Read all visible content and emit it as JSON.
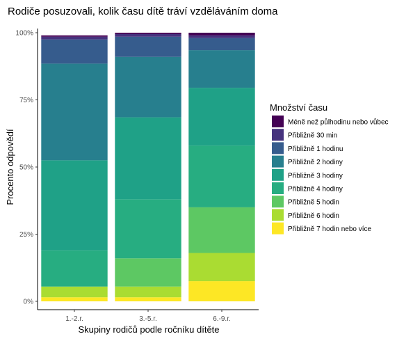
{
  "chart_data": {
    "type": "bar",
    "stacked": "percent",
    "title": "Rodiče posuzovali, kolik času dítě tráví vzděláváním doma",
    "xlabel": "Skupiny rodičů podle ročníku dítěte",
    "ylabel": "Procento odpovědí",
    "ylim": [
      0,
      1
    ],
    "yticks": [
      "0%",
      "25%",
      "50%",
      "75%",
      "100%"
    ],
    "legend_title": "Množství času",
    "legend_position": "right",
    "grid": false,
    "categories": [
      "1.-2.r.",
      "3.-5.r.",
      "6.-9.r."
    ],
    "series": [
      {
        "name": "Méně než půlhodinu nebo vůbec",
        "color": "#440154",
        "values": [
          0.005,
          0.005,
          0.01
        ]
      },
      {
        "name": "Přibližně 30 min",
        "color": "#46337E",
        "values": [
          0.01,
          0.01,
          0.01
        ]
      },
      {
        "name": "Přibližně 1 hodinu",
        "color": "#365C8D",
        "values": [
          0.09,
          0.075,
          0.045
        ]
      },
      {
        "name": "Přibližně 2 hodiny",
        "color": "#277F8E",
        "values": [
          0.36,
          0.225,
          0.14
        ]
      },
      {
        "name": "Přibližně 3 hodiny",
        "color": "#1FA187",
        "values": [
          0.335,
          0.305,
          0.215
        ]
      },
      {
        "name": "Přibližně 4 hodiny",
        "color": "#27AD81",
        "values": [
          0.135,
          0.22,
          0.23
        ]
      },
      {
        "name": "Přibližně 5 hodin",
        "color": "#5DC863",
        "values": [
          0.0,
          0.105,
          0.17
        ]
      },
      {
        "name": "Přibližně 6 hodin",
        "color": "#AADC32",
        "values": [
          0.04,
          0.04,
          0.105
        ]
      },
      {
        "name": "Přibližně 7 hodin nebo více",
        "color": "#FDE725",
        "values": [
          0.015,
          0.015,
          0.075
        ]
      }
    ]
  }
}
